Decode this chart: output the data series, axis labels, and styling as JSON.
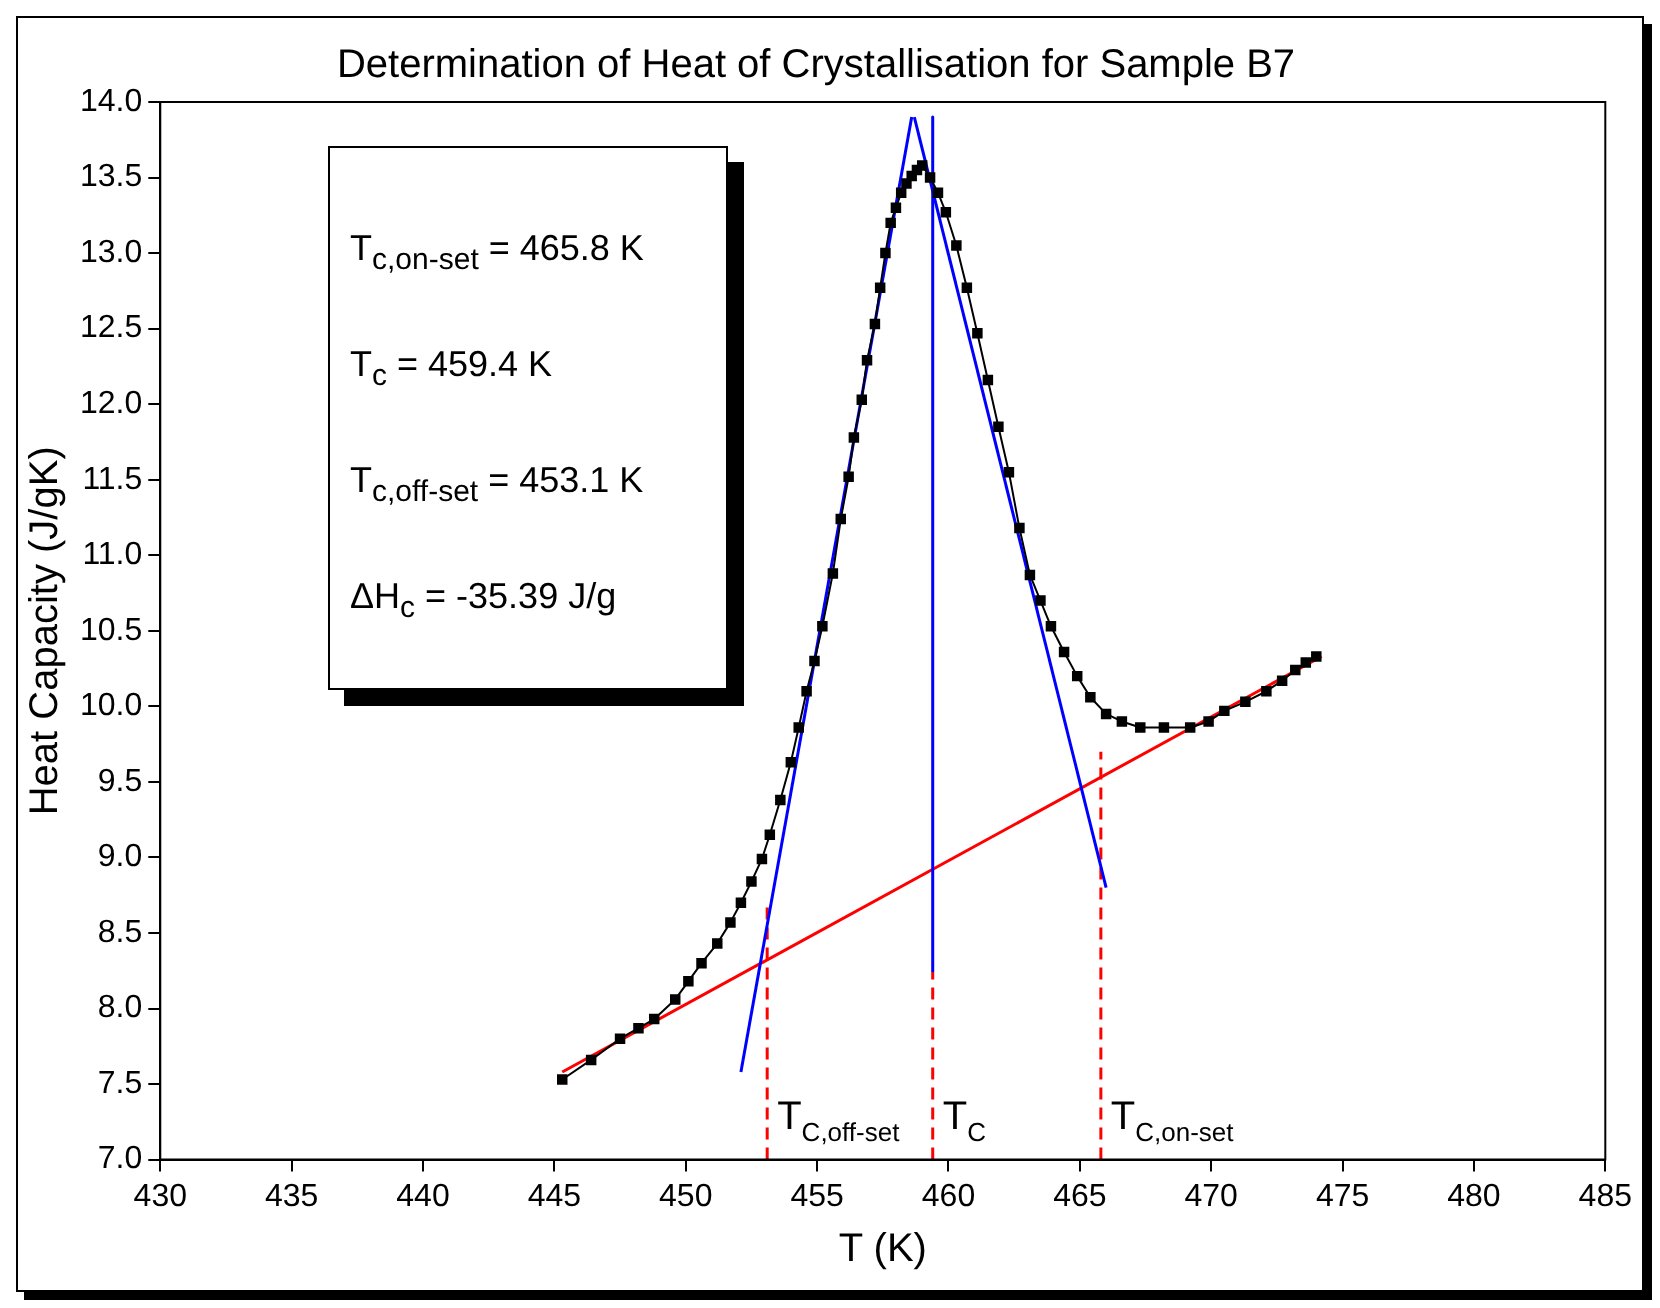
{
  "chart_data": {
    "type": "line",
    "title": "Determination of Heat of Crystallisation for Sample B7",
    "xlabel": "T (K)",
    "ylabel": "Heat Capacity (J/gK)",
    "xlim": [
      430,
      485
    ],
    "ylim": [
      7,
      14
    ],
    "xticks": [
      430,
      435,
      440,
      445,
      450,
      455,
      460,
      465,
      470,
      475,
      480,
      485
    ],
    "yticks": [
      {
        "value": 7,
        "label": "7.0"
      },
      {
        "value": 7.5,
        "label": "7.5"
      },
      {
        "value": 8,
        "label": "8.0"
      },
      {
        "value": 8.5,
        "label": "8.5"
      },
      {
        "value": 9,
        "label": "9.0"
      },
      {
        "value": 9.5,
        "label": "9.5"
      },
      {
        "value": 10,
        "label": "10.0"
      },
      {
        "value": 10.5,
        "label": "10.5"
      },
      {
        "value": 11,
        "label": "11.0"
      },
      {
        "value": 11.5,
        "label": "11.5"
      },
      {
        "value": 12,
        "label": "12.0"
      },
      {
        "value": 12.5,
        "label": "12.5"
      },
      {
        "value": 13,
        "label": "13.0"
      },
      {
        "value": 13.5,
        "label": "13.5"
      },
      {
        "value": 14,
        "label": "14.0"
      }
    ],
    "grid": false,
    "legend": false,
    "series": [
      {
        "color": "#000000",
        "marker": "square",
        "line_style": "solid",
        "x": [
          445.3,
          446.4,
          447.5,
          448.2,
          448.8,
          449.6,
          450.1,
          450.6,
          451.2,
          451.7,
          452.1,
          452.5,
          452.9,
          453.2,
          453.6,
          454.0,
          454.3,
          454.6,
          454.9,
          455.2,
          455.6,
          455.9,
          456.2,
          456.4,
          456.7,
          456.9,
          457.2,
          457.4,
          457.6,
          457.8,
          458.0,
          458.2,
          458.4,
          458.6,
          458.8,
          459.0,
          459.3,
          459.6,
          459.9,
          460.3,
          460.7,
          461.1,
          461.5,
          461.9,
          462.3,
          462.7,
          463.1,
          463.5,
          463.9,
          464.4,
          464.9,
          465.4,
          466.0,
          466.6,
          467.3,
          468.2,
          469.2,
          469.9,
          470.5,
          471.3,
          472.1,
          472.7,
          473.2,
          473.6,
          474.0
        ],
        "values": [
          7.53,
          7.66,
          7.8,
          7.87,
          7.93,
          8.06,
          8.18,
          8.3,
          8.43,
          8.57,
          8.7,
          8.84,
          8.99,
          9.15,
          9.38,
          9.63,
          9.86,
          10.1,
          10.3,
          10.53,
          10.88,
          11.24,
          11.52,
          11.78,
          12.03,
          12.29,
          12.53,
          12.77,
          13.0,
          13.2,
          13.3,
          13.4,
          13.46,
          13.51,
          13.55,
          13.58,
          13.5,
          13.4,
          13.27,
          13.05,
          12.77,
          12.47,
          12.16,
          11.85,
          11.55,
          11.18,
          10.87,
          10.7,
          10.53,
          10.36,
          10.2,
          10.06,
          9.95,
          9.9,
          9.86,
          9.86,
          9.86,
          9.9,
          9.97,
          10.03,
          10.1,
          10.17,
          10.24,
          10.29,
          10.33
        ]
      },
      {
        "type": "line",
        "color": "#0000ff",
        "marker": "none",
        "line_style": "solid",
        "x": [
          452.1,
          458.6
        ],
        "values": [
          7.58,
          13.9
        ]
      },
      {
        "type": "line",
        "color": "#0000ff",
        "marker": "none",
        "line_style": "solid",
        "x": [
          458.7,
          466.0
        ],
        "values": [
          13.9,
          8.8
        ]
      },
      {
        "type": "line",
        "color": "#0000ff",
        "marker": "none",
        "line_style": "solid",
        "x": [
          459.4,
          459.4
        ],
        "values": [
          13.9,
          8.25
        ]
      },
      {
        "type": "line",
        "color": "#ff0000",
        "marker": "none",
        "line_style": "solid",
        "x": [
          445.3,
          474.2
        ],
        "values": [
          7.58,
          10.33
        ]
      },
      {
        "type": "line",
        "color": "#ff0000",
        "marker": "none",
        "line_style": "dashed",
        "x": [
          453.1,
          453.1
        ],
        "values": [
          7,
          8.7
        ]
      },
      {
        "type": "line",
        "color": "#ff0000",
        "marker": "none",
        "line_style": "dashed",
        "x": [
          459.4,
          459.4
        ],
        "values": [
          7,
          8.25
        ]
      },
      {
        "type": "line",
        "color": "#ff0000",
        "marker": "none",
        "line_style": "dashed",
        "x": [
          465.8,
          465.8
        ],
        "values": [
          7,
          9.7
        ]
      }
    ],
    "annotations": [
      "T$_{c,on-set}$ =  465.8 K",
      "T$_{c}$ =  459.4 K",
      "T$_{c,off-set}$ =  453.1 K",
      "ΔH$_{c}$ =  -35.39 J/g",
      {
        "text": "T$_{C,off-set}$",
        "x": 453.1,
        "y": 7.2
      },
      {
        "text": "T$_{C}$",
        "x": 459.4,
        "y": 7.2
      },
      {
        "text": "T$_{C,on-set}$",
        "x": 465.8,
        "y": 7.2
      }
    ]
  }
}
